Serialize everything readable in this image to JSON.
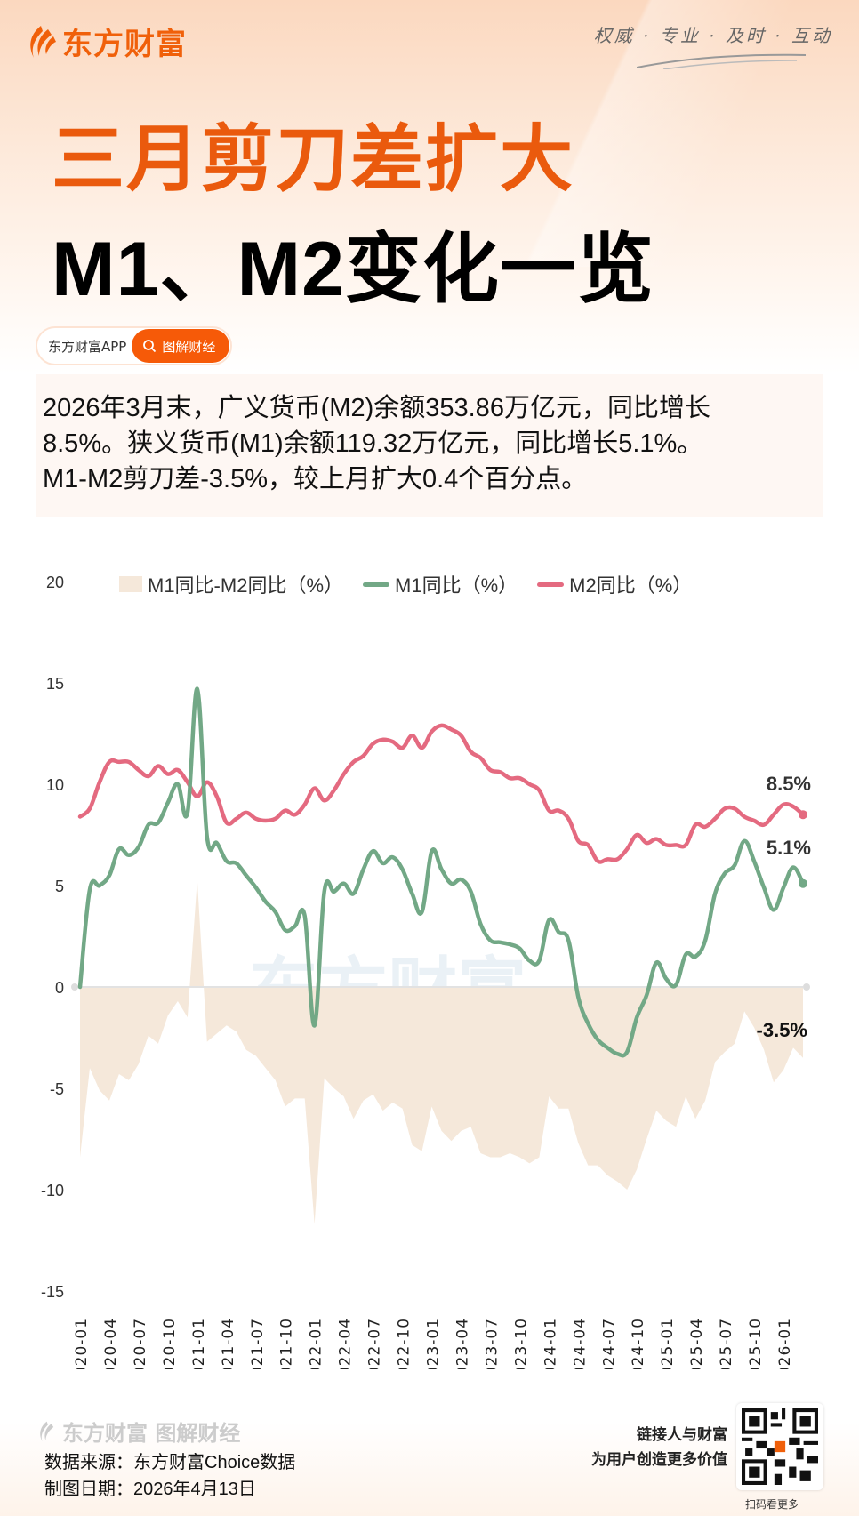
{
  "header": {
    "brand": "东方财富",
    "slogan": "权威 · 专业 · 及时 · 互动",
    "title_line1": "三月剪刀差扩大",
    "title_line2": "M1、M2变化一览",
    "app_label": "东方财富APP",
    "search_button": "图解财经"
  },
  "summary": {
    "line1": "2026年3月末，广义货币(M2)余额353.86万亿元，同比增长",
    "line2": "8.5%。狭义货币(M1)余额119.32万亿元，同比增长5.1%。",
    "line3": "M1-M2剪刀差-3.5%，较上月扩大0.4个百分点。"
  },
  "colors": {
    "brand_orange": "#f0600a",
    "m1": "#72a886",
    "m2": "#e46a80",
    "gap_area": "#f5e8da"
  },
  "chart_data": {
    "type": "line",
    "title": "",
    "xlabel": "",
    "ylabel": "",
    "ylim": [
      -15,
      20
    ],
    "yticks": [
      20,
      15,
      10,
      5,
      0,
      -5,
      -10,
      -15
    ],
    "legend_position": "top",
    "grid": false,
    "x_tick_labels": [
      "2020-01",
      "2020-04",
      "2020-07",
      "2020-10",
      "2021-01",
      "2021-04",
      "2021-07",
      "2021-10",
      "2022-01",
      "2022-04",
      "2022-07",
      "2022-10",
      "2023-01",
      "2023-04",
      "2023-07",
      "2023-10",
      "2024-01",
      "2024-04",
      "2024-07",
      "2024-10",
      "2025-01",
      "2025-04",
      "2025-07",
      "2025-10",
      "2026-01"
    ],
    "x_start": "2020-01",
    "x_end": "2026-03",
    "series": [
      {
        "name": "M1同比-M2同比（%）",
        "kind": "area",
        "values": [
          -8.4,
          -4.0,
          -5.1,
          -5.6,
          -4.3,
          -4.6,
          -3.8,
          -2.4,
          -2.8,
          -1.4,
          -0.7,
          -1.5,
          5.3,
          -2.7,
          -2.3,
          -1.9,
          -2.2,
          -3.1,
          -3.4,
          -4.0,
          -4.6,
          -5.9,
          -5.5,
          -5.5,
          -11.7,
          -4.5,
          -5.0,
          -5.4,
          -6.5,
          -5.6,
          -5.3,
          -6.1,
          -5.7,
          -6.0,
          -7.8,
          -8.1,
          -5.9,
          -7.1,
          -7.6,
          -7.1,
          -6.9,
          -8.2,
          -8.4,
          -8.4,
          -8.2,
          -8.4,
          -8.7,
          -8.4,
          -5.4,
          -6.0,
          -6.0,
          -7.7,
          -8.8,
          -8.8,
          -9.3,
          -9.6,
          -10.0,
          -9.0,
          -7.5,
          -6.1,
          -6.6,
          -6.9,
          -5.4,
          -6.5,
          -5.6,
          -3.7,
          -3.2,
          -2.8,
          -1.2,
          -2.0,
          -3.1,
          -4.7,
          -4.1,
          -3.0,
          -3.5
        ]
      },
      {
        "name": "M1同比（%）",
        "kind": "line",
        "values": [
          0.0,
          4.8,
          5.0,
          5.5,
          6.8,
          6.5,
          6.9,
          8.0,
          8.1,
          9.1,
          10.0,
          8.6,
          14.7,
          7.4,
          7.1,
          6.2,
          6.1,
          5.5,
          4.9,
          4.2,
          3.7,
          2.8,
          3.0,
          3.5,
          -1.9,
          4.7,
          4.7,
          5.1,
          4.6,
          5.8,
          6.7,
          6.1,
          6.4,
          5.8,
          4.6,
          3.7,
          6.7,
          5.8,
          5.1,
          5.3,
          4.7,
          3.1,
          2.3,
          2.2,
          2.1,
          1.9,
          1.3,
          1.3,
          3.3,
          2.7,
          2.3,
          -0.5,
          -1.8,
          -2.6,
          -3.0,
          -3.3,
          -3.2,
          -1.5,
          -0.4,
          1.2,
          0.4,
          0.1,
          1.6,
          1.5,
          2.3,
          4.6,
          5.6,
          6.0,
          7.2,
          6.2,
          4.9,
          3.8,
          4.9,
          5.9,
          5.1
        ]
      },
      {
        "name": "M2同比（%）",
        "kind": "line",
        "values": [
          8.4,
          8.8,
          10.1,
          11.1,
          11.1,
          11.1,
          10.7,
          10.4,
          10.9,
          10.5,
          10.7,
          10.1,
          9.4,
          10.1,
          9.4,
          8.1,
          8.3,
          8.6,
          8.3,
          8.2,
          8.3,
          8.7,
          8.5,
          9.0,
          9.8,
          9.2,
          9.7,
          10.5,
          11.1,
          11.4,
          12.0,
          12.2,
          12.1,
          11.8,
          12.4,
          11.8,
          12.6,
          12.9,
          12.7,
          12.4,
          11.6,
          11.3,
          10.7,
          10.6,
          10.3,
          10.3,
          10.0,
          9.7,
          8.7,
          8.7,
          8.3,
          7.2,
          7.0,
          6.2,
          6.3,
          6.3,
          6.8,
          7.5,
          7.1,
          7.3,
          7.0,
          7.0,
          7.0,
          8.0,
          7.9,
          8.3,
          8.8,
          8.8,
          8.4,
          8.2,
          8.0,
          8.5,
          9.0,
          8.9,
          8.5
        ]
      }
    ],
    "annotations": [
      "8.5%",
      "5.1%",
      "-3.5%"
    ]
  },
  "chart_labels": {
    "legend_gap": "M1同比-M2同比（%）",
    "legend_m1": "M1同比（%）",
    "legend_m2": "M2同比（%）",
    "end_m2": "8.5%",
    "end_m1": "5.1%",
    "end_gap": "-3.5%",
    "watermark": "东方财富"
  },
  "footer": {
    "watermark": "东方财富 图解财经",
    "source": "数据来源：东方财富Choice数据",
    "date": "制图日期：2026年4月13日",
    "tagline1": "链接人与财富",
    "tagline2": "为用户创造更多价值",
    "qr_caption": "扫码看更多"
  }
}
